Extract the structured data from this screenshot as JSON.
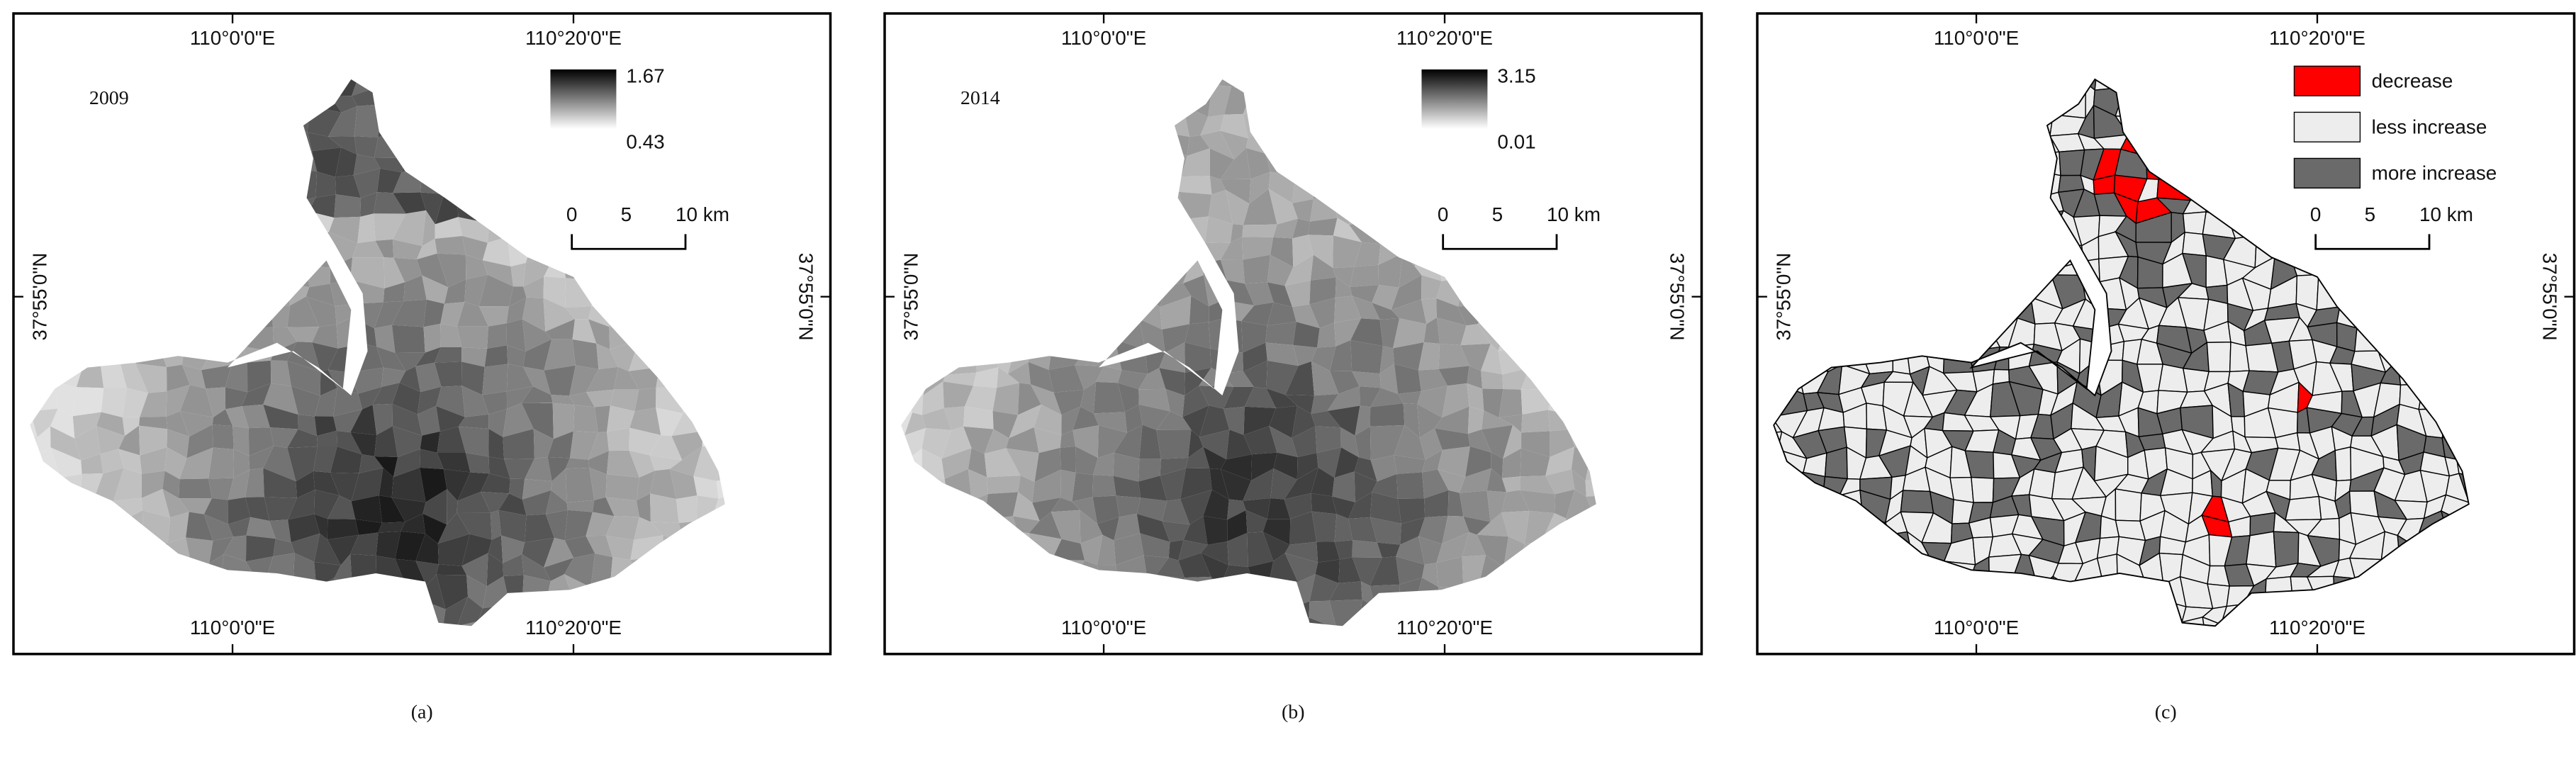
{
  "axes": {
    "lon_left": "110°0'0\"E",
    "lon_right": "110°20'0\"E",
    "lat": "37°55'0\"N"
  },
  "scale_bar": [
    "0",
    "5",
    "10 km"
  ],
  "panels": [
    {
      "label": "(a)",
      "year": "2009",
      "legend_max": "1.67",
      "legend_min": "0.43"
    },
    {
      "label": "(b)",
      "year": "2014",
      "legend_max": "3.15",
      "legend_min": "0.01"
    },
    {
      "label": "(c)",
      "legend": [
        "decrease",
        "less increase",
        "more increase"
      ]
    }
  ]
}
